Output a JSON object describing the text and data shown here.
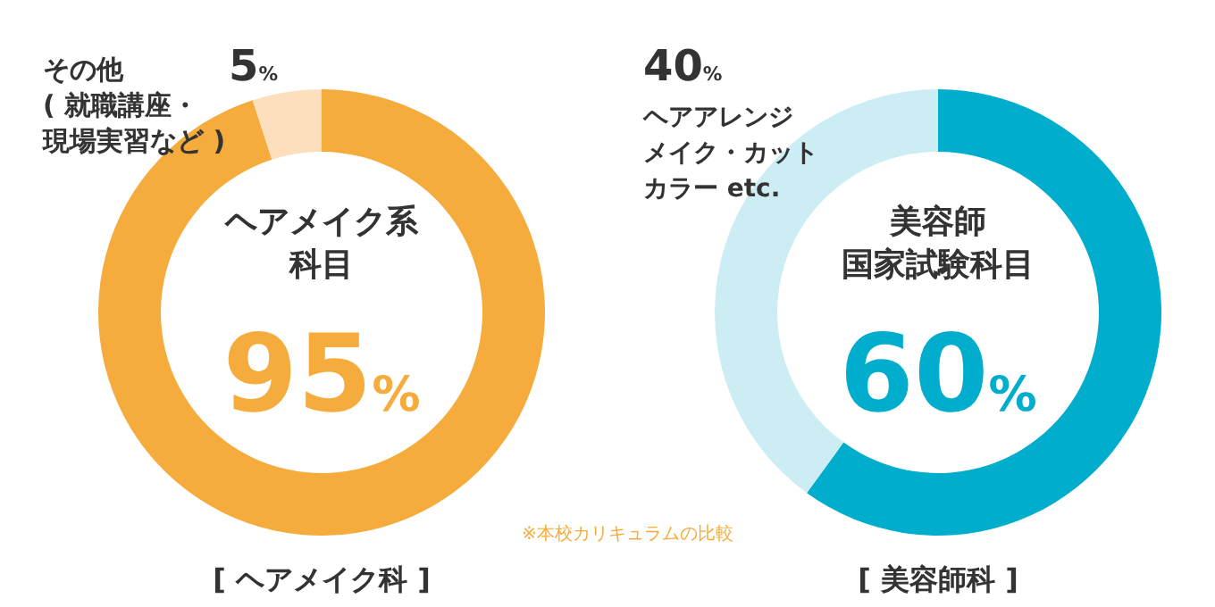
{
  "chart_data": [
    {
      "type": "donut",
      "title": "[ ヘアメイク科 ]",
      "categories": [
        "ヘアメイク系科目",
        "その他( 就職講座・現場実習など )"
      ],
      "values": [
        95,
        5
      ],
      "colors": [
        "#f5ac3c",
        "#fddfbd"
      ],
      "value_labels": [
        "95%",
        "5%"
      ],
      "annotations": [
        "※本校カリキュラムの比較"
      ]
    },
    {
      "type": "donut",
      "title": "[ 美容師科 ]",
      "categories": [
        "美容師国家試験科目",
        "ヘアアレンジメイク・カットカラー etc."
      ],
      "values": [
        60,
        40
      ],
      "colors": [
        "#00adcc",
        "#cdedf4"
      ],
      "value_labels": [
        "60%",
        "40%"
      ]
    }
  ]
}
